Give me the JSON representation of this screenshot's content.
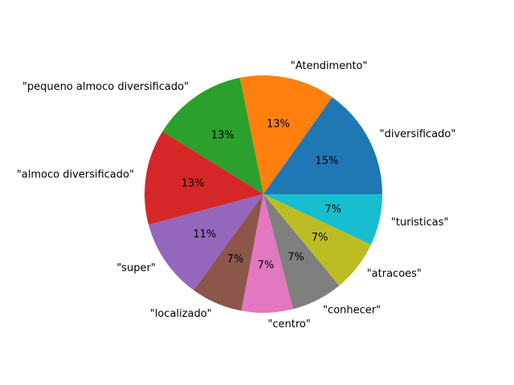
{
  "chart_data": {
    "type": "pie",
    "title": "",
    "start_angle_deg": 0,
    "direction": "counterclockwise",
    "slices": [
      {
        "label": "\"diversificado\"",
        "pct_label": "15%",
        "value": 15.2,
        "color": "#1f77b4"
      },
      {
        "label": "\"Atendimento\"",
        "pct_label": "13%",
        "value": 13.0,
        "color": "#ff7f0e"
      },
      {
        "label": "\"pequeno almoco diversificado\"",
        "pct_label": "13%",
        "value": 13.0,
        "color": "#2ca02c"
      },
      {
        "label": "\"almoco diversificado\"",
        "pct_label": "13%",
        "value": 13.0,
        "color": "#d62728"
      },
      {
        "label": "\"super\"",
        "pct_label": "11%",
        "value": 10.9,
        "color": "#9467bd"
      },
      {
        "label": "\"localizado\"",
        "pct_label": "7%",
        "value": 7.0,
        "color": "#8c564b"
      },
      {
        "label": "\"centro\"",
        "pct_label": "7%",
        "value": 7.0,
        "color": "#e377c2"
      },
      {
        "label": "\"conhecer\"",
        "pct_label": "7%",
        "value": 7.0,
        "color": "#7f7f7f"
      },
      {
        "label": "\"atracoes\"",
        "pct_label": "7%",
        "value": 7.0,
        "color": "#bcbd22"
      },
      {
        "label": "\"turisticas\"",
        "pct_label": "7%",
        "value": 7.0,
        "color": "#17becf"
      }
    ]
  }
}
